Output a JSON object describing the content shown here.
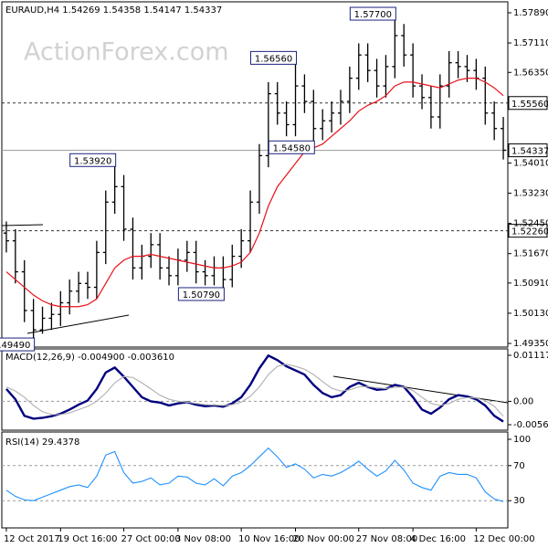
{
  "chart_data": [
    {
      "type": "ohlc",
      "title": "EURAUD,H4  1.54269 1.54358 1.54147 1.54337",
      "watermark": "ActionForex.com",
      "categories": [
        "12 Oct 2017",
        null,
        null,
        null,
        null,
        null,
        "19 Oct 16:00",
        null,
        null,
        null,
        null,
        null,
        null,
        "27 Oct 00:00",
        null,
        null,
        null,
        null,
        null,
        "3 Nov 08:00",
        null,
        null,
        null,
        null,
        null,
        null,
        "10 Nov 16:00",
        null,
        null,
        null,
        null,
        null,
        "20 Nov 00:00",
        null,
        null,
        null,
        null,
        null,
        null,
        "27 Nov 08:00",
        null,
        null,
        null,
        null,
        null,
        "4 Dec 16:00",
        null,
        null,
        null,
        null,
        null,
        null,
        "12 Dec 00:00",
        null,
        null,
        null
      ],
      "open": [
        1.522,
        1.52,
        1.512,
        1.502,
        1.497,
        1.5,
        1.501,
        1.504,
        1.507,
        1.509,
        1.508,
        1.517,
        1.53,
        1.534,
        1.523,
        1.513,
        1.516,
        1.519,
        1.513,
        1.511,
        1.515,
        1.517,
        1.512,
        1.511,
        1.513,
        1.51,
        1.516,
        1.52,
        1.53,
        1.542,
        1.558,
        1.553,
        1.55,
        1.56,
        1.556,
        1.549,
        1.551,
        1.553,
        1.556,
        1.562,
        1.568,
        1.564,
        1.56,
        1.565,
        1.573,
        1.568,
        1.56,
        1.557,
        1.552,
        1.56,
        1.566,
        1.565,
        1.564,
        1.562,
        1.553,
        1.549
      ],
      "high": [
        1.525,
        1.523,
        1.515,
        1.505,
        1.503,
        1.504,
        1.507,
        1.51,
        1.512,
        1.512,
        1.52,
        1.533,
        1.5392,
        1.537,
        1.526,
        1.519,
        1.522,
        1.522,
        1.516,
        1.518,
        1.52,
        1.52,
        1.515,
        1.516,
        1.516,
        1.519,
        1.523,
        1.533,
        1.545,
        1.561,
        1.561,
        1.556,
        1.5656,
        1.563,
        1.559,
        1.554,
        1.556,
        1.559,
        1.565,
        1.571,
        1.571,
        1.567,
        1.568,
        1.577,
        1.576,
        1.571,
        1.563,
        1.56,
        1.563,
        1.569,
        1.569,
        1.568,
        1.567,
        1.565,
        1.556,
        1.552
      ],
      "low": [
        1.517,
        1.509,
        1.499,
        1.4949,
        1.496,
        1.497,
        1.498,
        1.501,
        1.504,
        1.505,
        1.505,
        1.514,
        1.527,
        1.52,
        1.51,
        1.51,
        1.513,
        1.51,
        1.5085,
        1.5085,
        1.512,
        1.509,
        1.5085,
        1.5085,
        1.5079,
        1.508,
        1.513,
        1.517,
        1.527,
        1.539,
        1.55,
        1.547,
        1.547,
        1.553,
        1.5458,
        1.546,
        1.548,
        1.55,
        1.553,
        1.559,
        1.561,
        1.557,
        1.557,
        1.562,
        1.565,
        1.557,
        1.554,
        1.549,
        1.549,
        1.557,
        1.562,
        1.561,
        1.559,
        1.55,
        1.546,
        1.541
      ],
      "close": [
        1.52,
        1.512,
        1.502,
        1.497,
        1.5,
        1.501,
        1.504,
        1.507,
        1.509,
        1.508,
        1.517,
        1.53,
        1.534,
        1.523,
        1.513,
        1.516,
        1.519,
        1.513,
        1.511,
        1.515,
        1.517,
        1.512,
        1.511,
        1.513,
        1.51,
        1.516,
        1.52,
        1.53,
        1.542,
        1.558,
        1.553,
        1.55,
        1.56,
        1.556,
        1.549,
        1.551,
        1.553,
        1.556,
        1.562,
        1.568,
        1.564,
        1.56,
        1.565,
        1.573,
        1.568,
        1.56,
        1.557,
        1.552,
        1.56,
        1.566,
        1.565,
        1.564,
        1.562,
        1.553,
        1.549,
        1.5434
      ],
      "color": "#000000",
      "overlays": [
        {
          "color": "#e8101a",
          "values": [
            1.512,
            1.51,
            1.508,
            1.506,
            1.5045,
            1.5035,
            1.503,
            1.503,
            1.503,
            1.5035,
            1.505,
            1.509,
            1.513,
            1.515,
            1.516,
            1.516,
            1.5165,
            1.516,
            1.5155,
            1.515,
            1.5145,
            1.514,
            1.5135,
            1.513,
            1.513,
            1.5135,
            1.5145,
            1.517,
            1.522,
            1.529,
            1.534,
            1.537,
            1.54,
            1.543,
            1.544,
            1.545,
            1.547,
            1.549,
            1.551,
            1.5535,
            1.555,
            1.556,
            1.5575,
            1.56,
            1.561,
            1.561,
            1.5605,
            1.56,
            1.5595,
            1.5605,
            1.5615,
            1.562,
            1.562,
            1.561,
            1.5595,
            1.5575
          ]
        }
      ],
      "ylim": [
        1.49256,
        1.5822
      ],
      "yticks": [
        {
          "value": 1.5789,
          "label": "1.57890"
        },
        {
          "value": 1.5711,
          "label": "1.57110"
        },
        {
          "value": 1.5635,
          "label": "1.56350"
        },
        {
          "value": 1.5401,
          "label": "1.54010"
        },
        {
          "value": 1.5323,
          "label": "1.53230"
        },
        {
          "value": 1.5245,
          "label": "1.52450"
        },
        {
          "value": 1.5167,
          "label": "1.51670"
        },
        {
          "value": 1.5091,
          "label": "1.50910"
        },
        {
          "value": 1.5013,
          "label": "1.50130"
        },
        {
          "value": 1.4935,
          "label": "1.49350"
        }
      ],
      "levels": [
        {
          "value": 1.5556,
          "label": "1.55560",
          "style": "dashed"
        },
        {
          "value": 1.54337,
          "label": "1.54337",
          "style": "solid"
        },
        {
          "value": 1.5226,
          "label": "1.52260",
          "style": "dashed"
        }
      ],
      "annotations": [
        {
          "value": 1.577,
          "label": "1.57700"
        },
        {
          "value": 1.5656,
          "label": "1.56560"
        },
        {
          "value": 1.5458,
          "label": "1.54580"
        },
        {
          "value": 1.5392,
          "label": "1.53920"
        },
        {
          "value": 1.5079,
          "label": "1.50790"
        },
        {
          "value": 1.4949,
          "label": "1.49490"
        }
      ]
    },
    {
      "type": "line",
      "title": "MACD(12,26,9) -0.004900 -0.003610",
      "series": [
        {
          "color": "#00007f",
          "values": [
            0.003,
            0.0005,
            -0.0035,
            -0.0042,
            -0.004,
            -0.0036,
            -0.003,
            -0.002,
            -0.0008,
            0.0002,
            0.003,
            0.007,
            0.0082,
            0.006,
            0.0035,
            0.001,
            0.0,
            -0.0003,
            -0.001,
            -0.0005,
            -0.0002,
            -0.0008,
            -0.0012,
            -0.001,
            -0.0013,
            -0.0005,
            0.001,
            0.004,
            0.008,
            0.0111,
            0.01,
            0.0085,
            0.0075,
            0.0065,
            0.004,
            0.002,
            0.001,
            0.0015,
            0.0035,
            0.0045,
            0.0035,
            0.0028,
            0.003,
            0.004,
            0.0035,
            0.001,
            -0.002,
            -0.003,
            -0.0015,
            0.0005,
            0.0015,
            0.0012,
            0.0005,
            -0.001,
            -0.0035,
            -0.0049
          ]
        },
        {
          "color": "#b0b0b0",
          "values": [
            0.0035,
            0.0025,
            0.001,
            -0.001,
            -0.0025,
            -0.0032,
            -0.0032,
            -0.0028,
            -0.002,
            -0.0012,
            0.0,
            0.002,
            0.0045,
            0.006,
            0.0058,
            0.0045,
            0.003,
            0.0015,
            0.0005,
            0.0,
            -0.0002,
            -0.0005,
            -0.0008,
            -0.0009,
            -0.001,
            -0.0008,
            -0.0002,
            0.0012,
            0.0035,
            0.0065,
            0.0085,
            0.009,
            0.0085,
            0.0078,
            0.0065,
            0.0048,
            0.0032,
            0.0025,
            0.0028,
            0.0035,
            0.0036,
            0.0033,
            0.0031,
            0.0034,
            0.0035,
            0.0026,
            0.001,
            -0.0005,
            -0.001,
            -0.0005,
            0.0005,
            0.0009,
            0.0008,
            0.0002,
            -0.0012,
            -0.0036
          ]
        }
      ],
      "ylim": [
        -0.00677,
        0.01272
      ],
      "yticks": [
        0.011171,
        {
          "value": 0,
          "label": "0.00"
        },
        -0.005666
      ],
      "levels": [
        0
      ]
    },
    {
      "type": "line",
      "title": "RSI(14) 29.4378",
      "series": [
        {
          "color": "#1e90ff",
          "values": [
            42,
            35,
            31,
            30,
            34,
            38,
            42,
            46,
            48,
            45,
            58,
            82,
            86,
            62,
            50,
            52,
            56,
            48,
            50,
            58,
            57,
            50,
            48,
            55,
            47,
            58,
            62,
            70,
            80,
            90,
            80,
            68,
            72,
            66,
            56,
            60,
            58,
            62,
            68,
            75,
            66,
            58,
            64,
            76,
            65,
            50,
            45,
            42,
            58,
            62,
            60,
            60,
            56,
            40,
            32,
            29
          ]
        }
      ],
      "ylim": [
        0,
        100
      ],
      "yticks": [
        100,
        70,
        30
      ],
      "levels": [
        70,
        30
      ]
    }
  ]
}
